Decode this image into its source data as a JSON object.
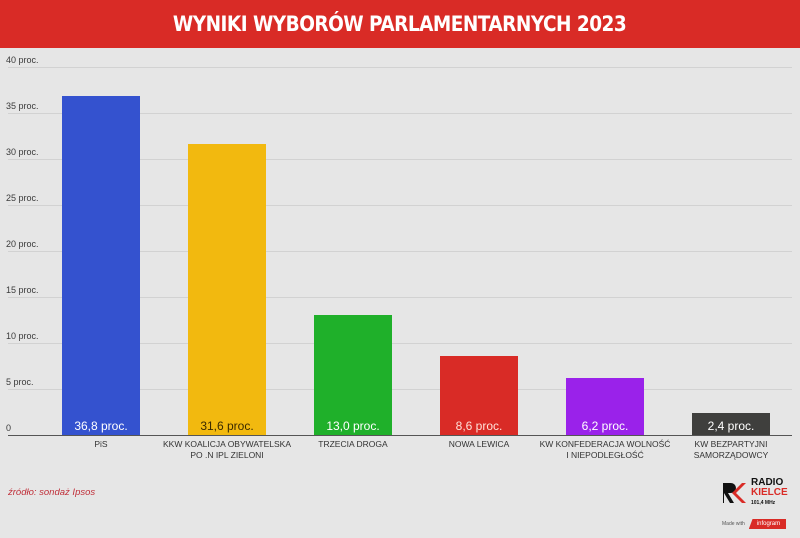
{
  "header": {
    "title": "WYNIKI WYBORÓW PARLAMENTARNYCH 2023"
  },
  "chart_data": {
    "type": "bar",
    "title": "WYNIKI WYBORÓW PARLAMENTARNYCH 2023",
    "xlabel": "",
    "ylabel": "",
    "ylim": [
      0,
      40
    ],
    "grid": true,
    "legend": null,
    "yticks": [
      {
        "value": 0,
        "label": "0"
      },
      {
        "value": 5,
        "label": "5 proc."
      },
      {
        "value": 10,
        "label": "10 proc."
      },
      {
        "value": 15,
        "label": "15 proc."
      },
      {
        "value": 20,
        "label": "20 proc."
      },
      {
        "value": 25,
        "label": "25 proc."
      },
      {
        "value": 30,
        "label": "30 proc."
      },
      {
        "value": 35,
        "label": "35 proc."
      },
      {
        "value": 40,
        "label": "40 proc."
      }
    ],
    "categories": [
      "PiS",
      "KKW KOALICJA OBYWATELSKA PO .N IPL ZIELONI",
      "TRZECIA DROGA",
      "NOWA LEWICA",
      "KW KONFEDERACJA WOLNOŚĆ I NIEPODLEGŁOŚĆ",
      "KW BEZPARTYJNI SAMORZĄDOWCY"
    ],
    "values": [
      36.8,
      31.6,
      13.0,
      8.6,
      6.2,
      2.4
    ],
    "bars": [
      {
        "label_line1": "PiS",
        "label_line2": "",
        "value": 36.8,
        "value_label": "36,8 proc.",
        "color": "#3452cf",
        "text_color": "#ffffff"
      },
      {
        "label_line1": "KKW KOALICJA OBYWATELSKA",
        "label_line2": "PO .N IPL ZIELONI",
        "value": 31.6,
        "value_label": "31,6 proc.",
        "color": "#f2b90f",
        "text_color": "#3a2a00"
      },
      {
        "label_line1": "TRZECIA DROGA",
        "label_line2": "",
        "value": 13.0,
        "value_label": "13,0 proc.",
        "color": "#1fb02a",
        "text_color": "#ffffff"
      },
      {
        "label_line1": "NOWA LEWICA",
        "label_line2": "",
        "value": 8.6,
        "value_label": "8,6 proc.",
        "color": "#d92b26",
        "text_color": "#ffe0d8"
      },
      {
        "label_line1": "KW KONFEDERACJA WOLNOŚĆ",
        "label_line2": "I NIEPODLEGŁOŚĆ",
        "value": 6.2,
        "value_label": "6,2 proc.",
        "color": "#9a22ea",
        "text_color": "#ffffff"
      },
      {
        "label_line1": "KW BEZPARTYJNI",
        "label_line2": "SAMORZĄDOWCY",
        "value": 2.4,
        "value_label": "2,4 proc.",
        "color": "#3f3f3d",
        "text_color": "#ffffff"
      }
    ]
  },
  "footer": {
    "source": "źródło: sondaż Ipsos",
    "logo_line1": "RADIO",
    "logo_line2": "KIELCE",
    "logo_line3": "101,4 MHz",
    "made_with": "Made with",
    "made_with_brand": "infogram"
  },
  "colors": {
    "header_bg": "#d92b26",
    "background": "#e6e6e6",
    "accent": "#d92b26"
  }
}
